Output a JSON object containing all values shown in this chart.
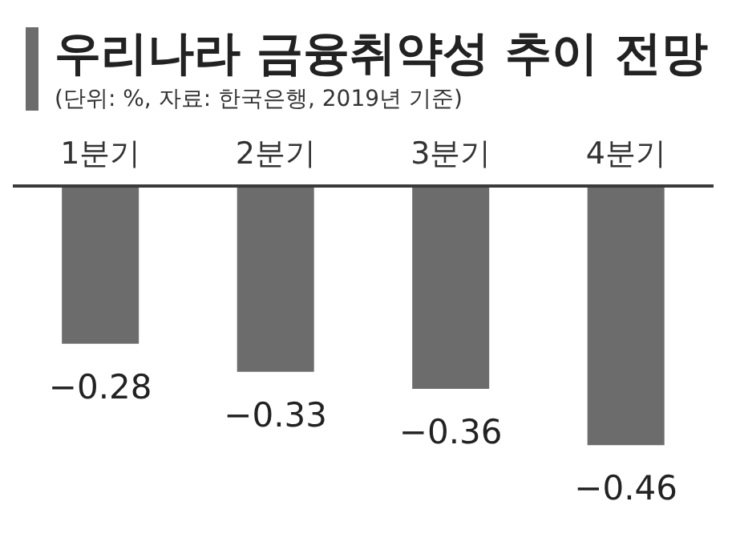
{
  "chart_data": {
    "type": "bar",
    "title": "우리나라 금융취약성 추이 전망",
    "subtitle": "(단위: %, 자료: 한국은행, 2019년 기준)",
    "categories": [
      "1분기",
      "2분기",
      "3분기",
      "4분기"
    ],
    "values": [
      -0.28,
      -0.33,
      -0.36,
      -0.46
    ],
    "value_labels": [
      "−0.28",
      "−0.33",
      "−0.36",
      "−0.46"
    ],
    "color": "#6d6c6c"
  }
}
